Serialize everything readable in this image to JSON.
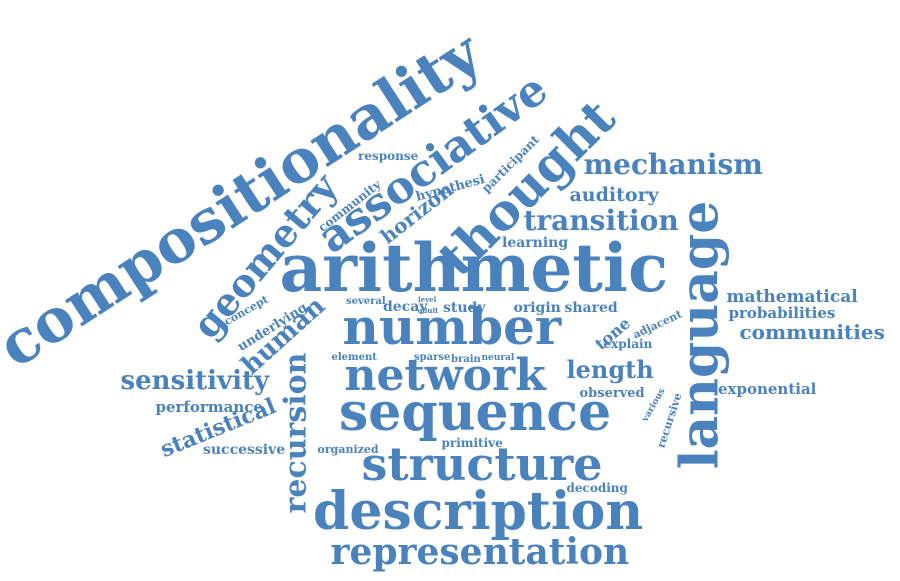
{
  "color": "#4a82bd",
  "words": [
    "compositionality",
    "arithmetic",
    "number",
    "sequence",
    "network",
    "structure",
    "description",
    "language",
    "thought",
    "associative",
    "geometry",
    "representation",
    "mechanism",
    "transition",
    "recursion",
    "sensitivity",
    "human",
    "length",
    "statistical",
    "communities",
    "mathematical",
    "probabilities",
    "auditory",
    "horizon",
    "performance",
    "exponential",
    "learning",
    "successive",
    "decoding",
    "community",
    "hypothesi",
    "participant",
    "response",
    "underlying",
    "concept",
    "several",
    "decay",
    "level",
    "adult",
    "study",
    "origin",
    "shared",
    "tone",
    "adjacent",
    "explain",
    "element",
    "sparse",
    "brain",
    "neural",
    "observed",
    "various",
    "recursive",
    "organized",
    "primitive"
  ]
}
